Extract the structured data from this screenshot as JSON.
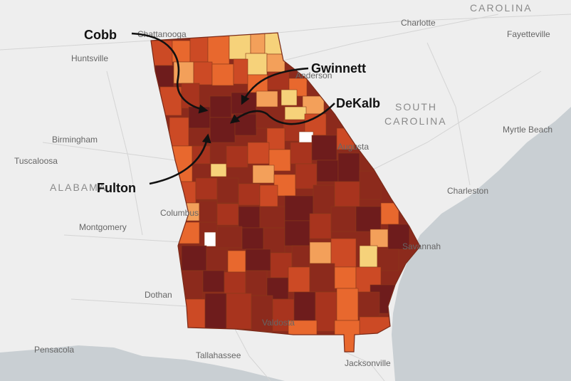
{
  "callouts": {
    "cobb": "Cobb",
    "gwinnett": "Gwinnett",
    "dekalb": "DeKalb",
    "fulton": "Fulton"
  },
  "cities": {
    "chattanooga": "Chattanooga",
    "huntsville": "Huntsville",
    "charlotte": "Charlotte",
    "fayetteville": "Fayetteville",
    "anderson": "Anderson",
    "birmingham": "Birmingham",
    "tuscaloosa": "Tuscaloosa",
    "augusta": "Augusta",
    "myrtle_beach": "Myrtle Beach",
    "montgomery": "Montgomery",
    "columbus": "Columbus",
    "charleston": "Charleston",
    "savannah": "Savannah",
    "dothan": "Dothan",
    "valdosta": "Valdosta",
    "pensacola": "Pensacola",
    "tallahassee": "Tallahassee",
    "jacksonville": "Jacksonville"
  },
  "regions": {
    "carolina_top": "CAROLINA",
    "south_carolina_1": "SOUTH",
    "south_carolina_2": "CAROLINA",
    "alabama": "ALABAMA"
  },
  "colors": {
    "land": "#f2f2f2",
    "water": "#c9cfd3",
    "darkest": "#6e1c1c",
    "dark": "#8c2a1c",
    "mid_dark": "#a8341e",
    "mid": "#cc4a25",
    "orange": "#e8682e",
    "light_orange": "#f3a05a",
    "pale": "#f6d27a",
    "none": "#ffffff"
  }
}
